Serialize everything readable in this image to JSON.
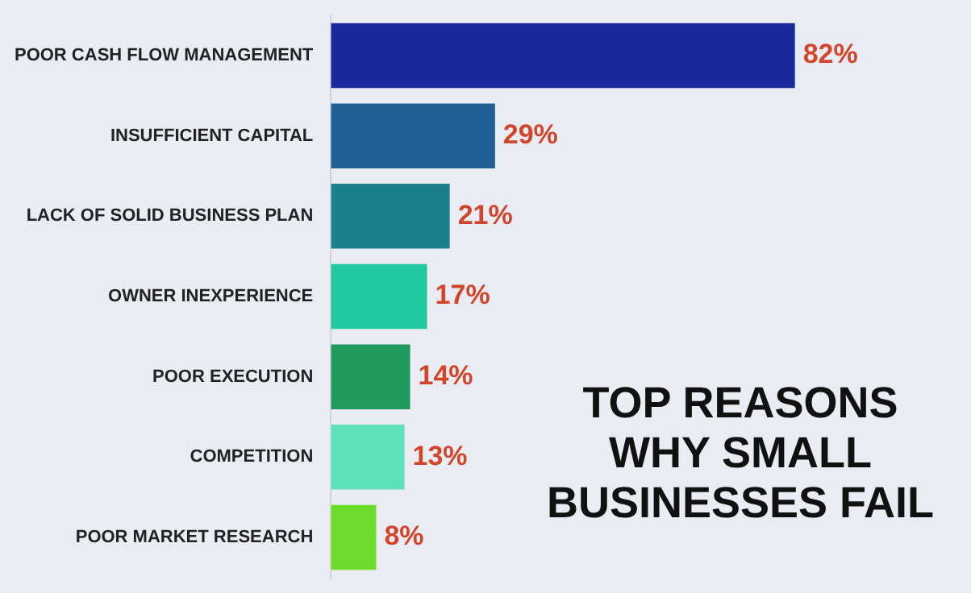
{
  "chart_data": {
    "type": "bar",
    "orientation": "horizontal",
    "title": "TOP REASONS WHY SMALL BUSINESSES FAIL",
    "categories": [
      "POOR CASH FLOW MANAGEMENT",
      "INSUFFICIENT CAPITAL",
      "LACK OF SOLID BUSINESS PLAN",
      "OWNER INEXPERIENCE",
      "POOR EXECUTION",
      "COMPETITION",
      "POOR MARKET RESEARCH"
    ],
    "values": [
      82,
      29,
      21,
      17,
      14,
      13,
      8
    ],
    "colors": [
      "#1a2a9c",
      "#1f5f96",
      "#1b7f8c",
      "#22c9a0",
      "#1f9a5a",
      "#60e0b8",
      "#6cdc2a"
    ],
    "value_labels": [
      "82%",
      "29%",
      "21%",
      "17%",
      "14%",
      "13%",
      "8%"
    ],
    "tick_labels": "y",
    "legend": false
  }
}
